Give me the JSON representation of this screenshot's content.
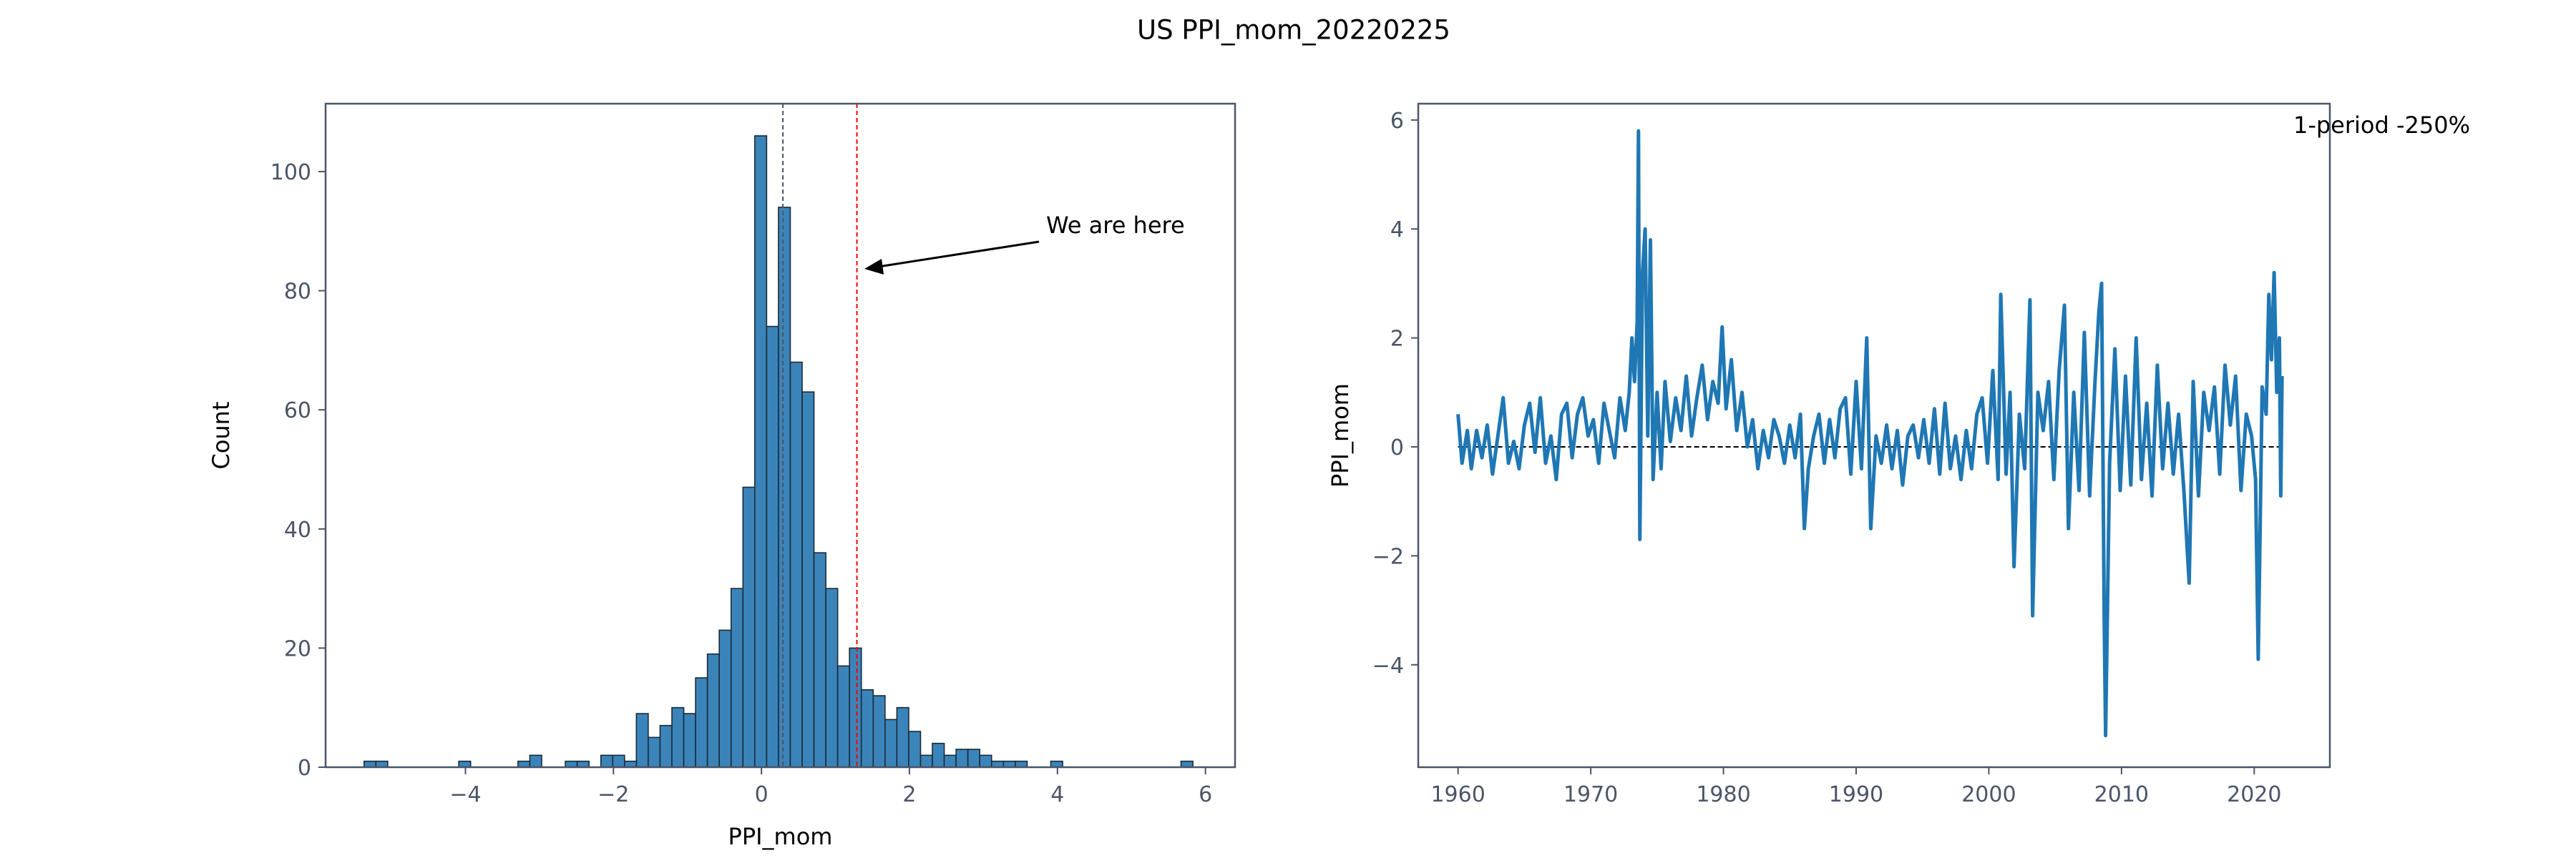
{
  "title": "US PPI_mom_20220225",
  "chart_data": [
    {
      "type": "histogram",
      "xlabel": "PPI_mom",
      "ylabel": "Count",
      "color": "#3b84b9",
      "edgecolor": "#1a2a38",
      "bins": [
        -5.37,
        -5.21,
        -5.05,
        -4.89,
        -4.73,
        -4.57,
        -4.41,
        -4.25,
        -4.09,
        -3.93,
        -3.77,
        -3.61,
        -3.45,
        -3.29,
        -3.13,
        -2.97,
        -2.81,
        -2.65,
        -2.49,
        -2.33,
        -2.17,
        -2.01,
        -1.85,
        -1.69,
        -1.53,
        -1.37,
        -1.21,
        -1.05,
        -0.89,
        -0.73,
        -0.57,
        -0.41,
        -0.25,
        -0.09,
        0.07,
        0.23,
        0.39,
        0.55,
        0.71,
        0.87,
        1.03,
        1.19,
        1.35,
        1.51,
        1.67,
        1.83,
        1.99,
        2.15,
        2.31,
        2.47,
        2.63,
        2.79,
        2.95,
        3.11,
        3.27,
        3.43,
        3.59,
        3.75,
        3.91,
        4.07,
        4.23,
        4.39,
        4.55,
        4.71,
        4.87,
        5.03,
        5.19,
        5.35,
        5.51,
        5.67,
        5.83
      ],
      "values": [
        1,
        1,
        0,
        0,
        0,
        0,
        0,
        0,
        1,
        0,
        0,
        0,
        0,
        1,
        2,
        0,
        0,
        1,
        1,
        0,
        2,
        2,
        1,
        9,
        5,
        7,
        10,
        9,
        15,
        19,
        23,
        30,
        47,
        106,
        74,
        94,
        68,
        63,
        36,
        30,
        17,
        20,
        13,
        12,
        8,
        10,
        6,
        2,
        4,
        2,
        3,
        3,
        2,
        1,
        1,
        1,
        0,
        0,
        1,
        0,
        0,
        0,
        0,
        0,
        0,
        0,
        0,
        0,
        0,
        1
      ],
      "xlim": [
        -5.89,
        6.4
      ],
      "ylim": [
        0,
        111.4
      ],
      "xticks": [
        {
          "value": -4,
          "label": "−4"
        },
        {
          "value": -2,
          "label": "−2"
        },
        0,
        2,
        4,
        6
      ],
      "yticks": [
        0,
        20,
        40,
        60,
        80,
        100
      ],
      "vlines": [
        {
          "value": 0.29,
          "color": "#4a5568"
        },
        {
          "value": 1.29,
          "color": "#ff0000"
        }
      ],
      "annotation": "We are here"
    },
    {
      "type": "line",
      "ylabel": "PPI_mom",
      "x": [
        1960.0,
        1960.3,
        1960.7,
        1961.0,
        1961.4,
        1961.8,
        1962.2,
        1962.6,
        1963.0,
        1963.4,
        1963.8,
        1964.2,
        1964.6,
        1965.0,
        1965.4,
        1965.8,
        1966.2,
        1966.6,
        1967.0,
        1967.4,
        1967.8,
        1968.2,
        1968.6,
        1969.0,
        1969.4,
        1969.8,
        1970.2,
        1970.6,
        1971.0,
        1971.4,
        1971.8,
        1972.2,
        1972.6,
        1972.9,
        1973.1,
        1973.3,
        1973.5,
        1973.6,
        1973.7,
        1973.9,
        1974.1,
        1974.3,
        1974.5,
        1974.7,
        1975.0,
        1975.3,
        1975.6,
        1976.0,
        1976.4,
        1976.8,
        1977.2,
        1977.6,
        1978.0,
        1978.4,
        1978.8,
        1979.2,
        1979.6,
        1979.9,
        1980.2,
        1980.6,
        1981.0,
        1981.4,
        1981.8,
        1982.2,
        1982.6,
        1983.0,
        1983.4,
        1983.8,
        1984.2,
        1984.6,
        1985.0,
        1985.4,
        1985.8,
        1986.1,
        1986.4,
        1986.8,
        1987.2,
        1987.6,
        1988.0,
        1988.4,
        1988.8,
        1989.2,
        1989.6,
        1990.0,
        1990.4,
        1990.8,
        1991.1,
        1991.5,
        1991.9,
        1992.3,
        1992.7,
        1993.1,
        1993.5,
        1993.9,
        1994.3,
        1994.7,
        1995.1,
        1995.5,
        1995.9,
        1996.3,
        1996.7,
        1997.1,
        1997.5,
        1997.9,
        1998.3,
        1998.7,
        1999.1,
        1999.5,
        1999.9,
        2000.3,
        2000.7,
        2000.9,
        2001.3,
        2001.6,
        2001.9,
        2002.3,
        2002.7,
        2003.1,
        2003.3,
        2003.7,
        2004.1,
        2004.5,
        2004.9,
        2005.3,
        2005.7,
        2006.0,
        2006.4,
        2006.8,
        2007.2,
        2007.6,
        2008.0,
        2008.3,
        2008.5,
        2008.7,
        2008.8,
        2009.1,
        2009.5,
        2009.9,
        2010.3,
        2010.7,
        2011.1,
        2011.5,
        2011.9,
        2012.3,
        2012.7,
        2013.1,
        2013.5,
        2013.9,
        2014.3,
        2014.7,
        2015.1,
        2015.4,
        2015.8,
        2016.2,
        2016.6,
        2017.0,
        2017.4,
        2017.8,
        2018.2,
        2018.6,
        2019.0,
        2019.4,
        2019.8,
        2020.1,
        2020.3,
        2020.6,
        2020.9,
        2021.1,
        2021.3,
        2021.5,
        2021.7,
        2021.9,
        2022.0,
        2022.1
      ],
      "series": [
        {
          "color": "#1f77b4",
          "values": [
            0.6,
            -0.3,
            0.3,
            -0.4,
            0.3,
            -0.2,
            0.4,
            -0.5,
            0.2,
            0.9,
            -0.3,
            0.1,
            -0.4,
            0.4,
            0.8,
            -0.1,
            0.9,
            -0.3,
            0.2,
            -0.6,
            0.6,
            0.8,
            -0.2,
            0.6,
            0.9,
            0.2,
            0.5,
            -0.3,
            0.8,
            0.3,
            -0.2,
            0.9,
            0.3,
            1.0,
            2.0,
            1.2,
            2.3,
            5.8,
            -1.7,
            3.2,
            4.0,
            0.2,
            3.8,
            -0.6,
            1.0,
            -0.4,
            1.2,
            0.1,
            0.9,
            0.3,
            1.3,
            0.2,
            0.9,
            1.5,
            0.5,
            1.2,
            0.8,
            2.2,
            0.7,
            1.6,
            0.3,
            1.0,
            0.0,
            0.5,
            -0.4,
            0.3,
            -0.2,
            0.5,
            0.2,
            -0.3,
            0.4,
            -0.2,
            0.6,
            -1.5,
            -0.4,
            0.2,
            0.6,
            -0.3,
            0.5,
            -0.2,
            0.7,
            0.9,
            -0.5,
            1.2,
            -0.4,
            2.0,
            -1.5,
            0.2,
            -0.3,
            0.4,
            -0.4,
            0.3,
            -0.7,
            0.2,
            0.4,
            -0.2,
            0.5,
            -0.3,
            0.7,
            -0.5,
            0.8,
            -0.4,
            0.2,
            -0.6,
            0.3,
            -0.4,
            0.6,
            0.9,
            -0.3,
            1.4,
            -0.6,
            2.8,
            -0.5,
            1.0,
            -2.2,
            0.6,
            -0.4,
            2.7,
            -3.1,
            1.0,
            0.3,
            1.2,
            -0.6,
            1.4,
            2.6,
            -1.5,
            1.0,
            -0.8,
            2.1,
            -0.9,
            1.2,
            2.5,
            3.0,
            -3.2,
            -5.3,
            -0.3,
            1.8,
            -0.8,
            1.3,
            -0.7,
            2.0,
            -0.6,
            0.8,
            -0.9,
            1.5,
            -0.4,
            0.8,
            -0.5,
            0.6,
            -0.8,
            -2.5,
            1.2,
            -0.9,
            1.0,
            0.3,
            1.1,
            -0.5,
            1.5,
            0.4,
            1.3,
            -0.8,
            0.6,
            0.2,
            -0.6,
            -3.9,
            1.1,
            0.6,
            2.8,
            1.6,
            3.2,
            1.0,
            2.0,
            -0.9,
            1.3
          ]
        }
      ],
      "xlim": [
        1957.0,
        2025.7
      ],
      "ylim": [
        -5.88,
        6.3
      ],
      "xticks": [
        1960,
        1970,
        1980,
        1990,
        2000,
        2010,
        2020
      ],
      "yticks": [
        {
          "value": -4,
          "label": "−4"
        },
        {
          "value": -2,
          "label": "−2"
        },
        0,
        2,
        4,
        6
      ],
      "hline": 0,
      "annotation": "1-period -250%",
      "annotation_color": "#ff0000"
    }
  ]
}
